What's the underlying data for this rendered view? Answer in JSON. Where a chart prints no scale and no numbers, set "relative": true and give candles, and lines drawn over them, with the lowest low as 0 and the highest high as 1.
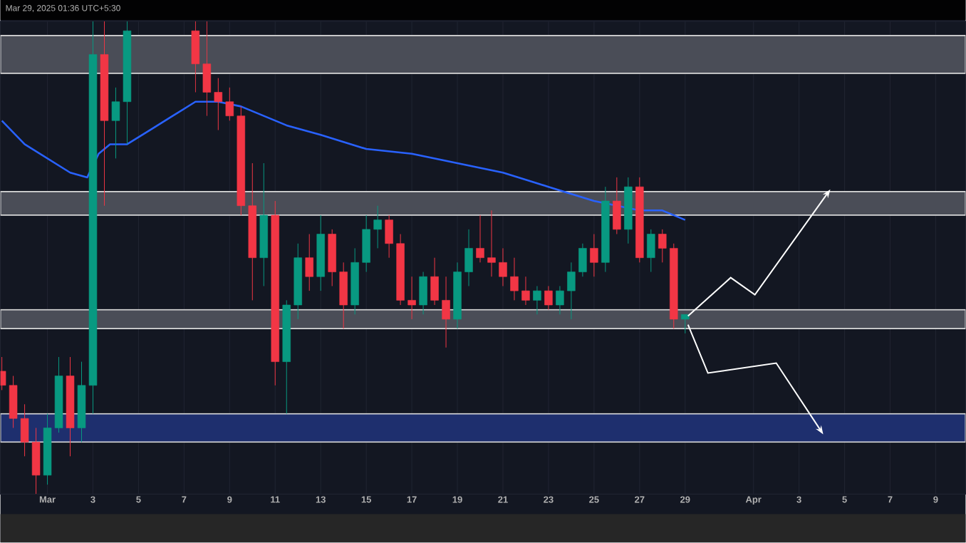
{
  "chart_data": {
    "type": "candlestick",
    "relative": true,
    "grid": "x",
    "annotations": [
      "Mar 29, 2025 01:36 UTC+5:30"
    ],
    "xlim": [
      "2025-02-26T22:30",
      "2025-04-10T07:30"
    ],
    "xticks": [
      {
        "value": "2025-03-01",
        "label": "Mar"
      },
      {
        "value": "2025-03-03",
        "label": "3"
      },
      {
        "value": "2025-03-05",
        "label": "5"
      },
      {
        "value": "2025-03-07",
        "label": "7"
      },
      {
        "value": "2025-03-09",
        "label": "9"
      },
      {
        "value": "2025-03-11",
        "label": "11"
      },
      {
        "value": "2025-03-13",
        "label": "13"
      },
      {
        "value": "2025-03-15",
        "label": "15"
      },
      {
        "value": "2025-03-17",
        "label": "17"
      },
      {
        "value": "2025-03-19",
        "label": "19"
      },
      {
        "value": "2025-03-21",
        "label": "21"
      },
      {
        "value": "2025-03-23",
        "label": "23"
      },
      {
        "value": "2025-03-25",
        "label": "25"
      },
      {
        "value": "2025-03-27",
        "label": "27"
      },
      {
        "value": "2025-03-29",
        "label": "29"
      },
      {
        "value": "2025-04-01",
        "label": "Apr"
      },
      {
        "value": "2025-04-03",
        "label": "3"
      },
      {
        "value": "2025-04-05",
        "label": "5"
      },
      {
        "value": "2025-04-07",
        "label": "7"
      },
      {
        "value": "2025-04-09",
        "label": "9"
      }
    ],
    "bands": [
      {
        "axis": "y",
        "from": 0.89,
        "to": 0.97,
        "color": "#4a4d57"
      },
      {
        "axis": "y",
        "from": 0.59,
        "to": 0.64,
        "color": "#4a4d57"
      },
      {
        "axis": "y",
        "from": 0.35,
        "to": 0.39,
        "color": "#4a4d57"
      },
      {
        "axis": "y",
        "from": 0.11,
        "to": 0.17,
        "color": "#1e2f6e"
      }
    ],
    "x": [
      "2025-02-27T00:00",
      "2025-02-27T12:00",
      "2025-02-28T00:00",
      "2025-02-28T12:00",
      "2025-03-01T00:00",
      "2025-03-01T12:00",
      "2025-03-02T00:00",
      "2025-03-02T12:00",
      "2025-03-03T00:00",
      "2025-03-03T12:00",
      "2025-03-04T00:00",
      "2025-03-04T12:00",
      "2025-03-07T12:00",
      "2025-03-08T00:00",
      "2025-03-08T12:00",
      "2025-03-09T00:00",
      "2025-03-09T12:00",
      "2025-03-10T00:00",
      "2025-03-10T12:00",
      "2025-03-11T00:00",
      "2025-03-11T12:00",
      "2025-03-12T00:00",
      "2025-03-12T12:00",
      "2025-03-13T00:00",
      "2025-03-13T12:00",
      "2025-03-14T00:00",
      "2025-03-14T12:00",
      "2025-03-15T00:00",
      "2025-03-15T12:00",
      "2025-03-16T00:00",
      "2025-03-16T12:00",
      "2025-03-17T00:00",
      "2025-03-17T12:00",
      "2025-03-18T00:00",
      "2025-03-18T12:00",
      "2025-03-19T00:00",
      "2025-03-19T12:00",
      "2025-03-20T00:00",
      "2025-03-20T12:00",
      "2025-03-21T00:00",
      "2025-03-21T12:00",
      "2025-03-22T00:00",
      "2025-03-22T12:00",
      "2025-03-23T00:00",
      "2025-03-23T12:00",
      "2025-03-24T00:00",
      "2025-03-24T12:00",
      "2025-03-25T00:00",
      "2025-03-25T12:00",
      "2025-03-26T00:00",
      "2025-03-26T12:00",
      "2025-03-27T00:00",
      "2025-03-27T12:00",
      "2025-03-28T00:00",
      "2025-03-28T12:00",
      "2025-03-29T00:00"
    ],
    "ohlc": [
      [
        0.26,
        0.29,
        0.22,
        0.23
      ],
      [
        0.23,
        0.25,
        0.14,
        0.16
      ],
      [
        0.16,
        0.19,
        0.08,
        0.11
      ],
      [
        0.11,
        0.14,
        0.0,
        0.04
      ],
      [
        0.04,
        0.17,
        0.02,
        0.14
      ],
      [
        0.14,
        0.29,
        0.13,
        0.25
      ],
      [
        0.25,
        0.29,
        0.08,
        0.14
      ],
      [
        0.14,
        0.28,
        0.11,
        0.23
      ],
      [
        0.23,
        1.0,
        0.17,
        0.93
      ],
      [
        0.93,
        1.0,
        0.61,
        0.79
      ],
      [
        0.79,
        0.86,
        0.71,
        0.83
      ],
      [
        0.83,
        1.0,
        0.74,
        0.98
      ],
      [
        0.98,
        1.0,
        0.85,
        0.91
      ],
      [
        0.91,
        1.0,
        0.8,
        0.85
      ],
      [
        0.85,
        0.88,
        0.77,
        0.83
      ],
      [
        0.83,
        0.86,
        0.79,
        0.8
      ],
      [
        0.8,
        0.82,
        0.59,
        0.61
      ],
      [
        0.61,
        0.7,
        0.41,
        0.5
      ],
      [
        0.5,
        0.7,
        0.44,
        0.59
      ],
      [
        0.59,
        0.62,
        0.23,
        0.28
      ],
      [
        0.28,
        0.41,
        0.17,
        0.4
      ],
      [
        0.4,
        0.53,
        0.37,
        0.5
      ],
      [
        0.5,
        0.55,
        0.43,
        0.46
      ],
      [
        0.46,
        0.59,
        0.43,
        0.55
      ],
      [
        0.55,
        0.56,
        0.44,
        0.47
      ],
      [
        0.47,
        0.49,
        0.35,
        0.4
      ],
      [
        0.4,
        0.52,
        0.38,
        0.49
      ],
      [
        0.49,
        0.59,
        0.47,
        0.56
      ],
      [
        0.56,
        0.61,
        0.52,
        0.58
      ],
      [
        0.58,
        0.59,
        0.5,
        0.53
      ],
      [
        0.53,
        0.55,
        0.4,
        0.41
      ],
      [
        0.41,
        0.46,
        0.37,
        0.4
      ],
      [
        0.4,
        0.47,
        0.38,
        0.46
      ],
      [
        0.46,
        0.5,
        0.4,
        0.41
      ],
      [
        0.41,
        0.46,
        0.31,
        0.37
      ],
      [
        0.37,
        0.49,
        0.35,
        0.47
      ],
      [
        0.47,
        0.56,
        0.44,
        0.52
      ],
      [
        0.52,
        0.59,
        0.49,
        0.5
      ],
      [
        0.5,
        0.6,
        0.46,
        0.49
      ],
      [
        0.49,
        0.52,
        0.44,
        0.46
      ],
      [
        0.46,
        0.5,
        0.41,
        0.43
      ],
      [
        0.43,
        0.46,
        0.4,
        0.41
      ],
      [
        0.41,
        0.44,
        0.38,
        0.43
      ],
      [
        0.43,
        0.44,
        0.39,
        0.4
      ],
      [
        0.4,
        0.44,
        0.38,
        0.43
      ],
      [
        0.43,
        0.49,
        0.37,
        0.47
      ],
      [
        0.47,
        0.53,
        0.46,
        0.52
      ],
      [
        0.52,
        0.55,
        0.46,
        0.49
      ],
      [
        0.49,
        0.65,
        0.47,
        0.62
      ],
      [
        0.62,
        0.67,
        0.55,
        0.56
      ],
      [
        0.56,
        0.67,
        0.53,
        0.65
      ],
      [
        0.65,
        0.67,
        0.49,
        0.5
      ],
      [
        0.5,
        0.56,
        0.47,
        0.55
      ],
      [
        0.55,
        0.56,
        0.49,
        0.52
      ],
      [
        0.52,
        0.53,
        0.35,
        0.37
      ],
      [
        0.37,
        0.38,
        0.34,
        0.38
      ]
    ],
    "series": [
      {
        "type": "line",
        "color": "#2962ff",
        "x": [
          "2025-02-27T00:00",
          "2025-02-28T00:00",
          "2025-03-01T00:00",
          "2025-03-02T00:00",
          "2025-03-02T18:00",
          "2025-03-03T06:00",
          "2025-03-03T18:00",
          "2025-03-04T12:00",
          "2025-03-05T12:00",
          "2025-03-06T12:00",
          "2025-03-07T12:00",
          "2025-03-08T12:00",
          "2025-03-09T12:00",
          "2025-03-10T12:00",
          "2025-03-11T12:00",
          "2025-03-13T00:00",
          "2025-03-15T00:00",
          "2025-03-17T00:00",
          "2025-03-19T00:00",
          "2025-03-21T00:00",
          "2025-03-23T00:00",
          "2025-03-25T00:00",
          "2025-03-26T00:00",
          "2025-03-27T00:00",
          "2025-03-28T00:00",
          "2025-03-28T12:00",
          "2025-03-29T00:00"
        ],
        "values": [
          0.79,
          0.74,
          0.71,
          0.68,
          0.67,
          0.72,
          0.74,
          0.74,
          0.77,
          0.8,
          0.83,
          0.83,
          0.82,
          0.8,
          0.78,
          0.76,
          0.73,
          0.72,
          0.7,
          0.68,
          0.65,
          0.62,
          0.61,
          0.6,
          0.6,
          0.59,
          0.58
        ]
      }
    ]
  }
}
